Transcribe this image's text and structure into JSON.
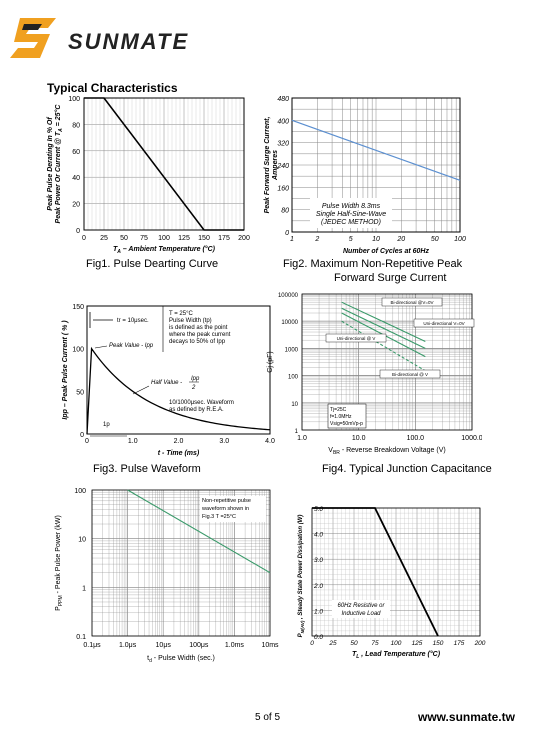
{
  "header": {
    "brand": "SUNMATE",
    "section_title": "Typical Characteristics"
  },
  "captions": {
    "fig1": "Fig1. Pulse Dearting Curve",
    "fig2_line1": "Fig2. Maximum Non-Repetitive Peak",
    "fig2_line2": "Forward Surge Current",
    "fig3": "Fig3. Pulse Waveform",
    "fig4": "Fig4. Typical Junction Capacitance"
  },
  "footer": {
    "page": "5 of  5",
    "url": "www.sunmate.tw"
  },
  "colors": {
    "brand_orange": "#f0a020",
    "curve_blue": "#5b8fd0",
    "curve_green": "#3a9a6a",
    "grid": "#888888"
  },
  "chart_data": [
    {
      "id": "fig1",
      "type": "line",
      "ylabel_line1": "Peak Pulse Derating In % Of",
      "ylabel_line2": "Peak Power Or Current @ T",
      "ylabel_sub": "A",
      "ylabel_tail": " = 25°C",
      "xlabel": "T",
      "xlabel_sub": "A",
      "xlabel_tail": " – Ambient Temperature (°C)",
      "x_ticks": [
        "0",
        "25",
        "50",
        "75",
        "100",
        "125",
        "150",
        "175",
        "200"
      ],
      "y_ticks": [
        "0",
        "20",
        "40",
        "60",
        "80",
        "100"
      ],
      "xlim": [
        0,
        200
      ],
      "ylim": [
        0,
        100
      ],
      "x": [
        0,
        25,
        150,
        200
      ],
      "y": [
        100,
        100,
        0,
        0
      ]
    },
    {
      "id": "fig2",
      "type": "line",
      "scale": "log-x",
      "ylabel_line1": "Peak Forward Surge Current,",
      "ylabel_line2": "Amperes",
      "xlabel": "Number of Cycles at 60Hz",
      "x_ticks": [
        "1",
        "2",
        "5",
        "10",
        "20",
        "50",
        "100"
      ],
      "y_ticks": [
        "0",
        "80",
        "160",
        "240",
        "320",
        "400",
        "480"
      ],
      "xlim": [
        1,
        100
      ],
      "ylim": [
        0,
        480
      ],
      "x": [
        1,
        100
      ],
      "y": [
        400,
        185
      ],
      "note_lines": [
        "Pulse Width 8.3ms",
        "Single Half-Sine-Wave",
        "(JEDEC METHOD)"
      ]
    },
    {
      "id": "fig3",
      "type": "line",
      "ylabel": "Ipp – Peak Pulse Current ( % )",
      "xlabel": "t - Time (ms)",
      "x_ticks": [
        "0",
        "1.0",
        "2.0",
        "3.0",
        "4.0"
      ],
      "y_ticks": [
        "0",
        "50",
        "100",
        "150"
      ],
      "xlim": [
        0,
        4
      ],
      "ylim": [
        0,
        150
      ],
      "annotations": {
        "tr": "tr = 10μsec.",
        "tj_lines": [
          "T  = 25°C",
          "Pulse Width (tp)",
          "is defined as the point",
          "where the peak current",
          "decays to 50% of Ipp"
        ],
        "peak": "Peak Value - Ipp",
        "half": "Half Value - ",
        "half_num": "Ipp",
        "half_den": "2",
        "waveform_lines": [
          "10/1000μsec. Waveform",
          "as defined by R.E.A."
        ],
        "tp": "1p"
      }
    },
    {
      "id": "fig4",
      "type": "line",
      "scale": "log-log",
      "ylabel": "Cj (pF)",
      "xlabel": "V  - Reverse Breakdown Voltage (V)",
      "xlabel_sub": "BR",
      "x_ticks": [
        "1.0",
        "10.0",
        "100.0",
        "1000.0"
      ],
      "y_ticks": [
        "100000",
        "10000",
        "1000",
        "100",
        "10",
        "1"
      ],
      "xlim": [
        1,
        1000
      ],
      "ylim": [
        1,
        100000
      ],
      "series": [
        {
          "name": "Bi-directional @V=0V",
          "x": [
            5,
            150
          ],
          "y": [
            50000,
            1800
          ]
        },
        {
          "name": "Uni-directional V=0V",
          "x": [
            5,
            150
          ],
          "y": [
            30000,
            1000
          ]
        },
        {
          "name": "Uni-directional @ V",
          "x": [
            5,
            150
          ],
          "y": [
            20000,
            500
          ]
        },
        {
          "name": "Bi-directional @ V",
          "x": [
            5,
            150
          ],
          "y": [
            10000,
            150
          ]
        }
      ],
      "conditions": [
        "Tj=25C",
        "f=1.0MHz",
        "Vsig=50mVp-p"
      ]
    },
    {
      "id": "fig5",
      "type": "line",
      "scale": "log-log",
      "ylabel": "P    - Peak Pulse Power (kW)",
      "ylabel_sub": "PPM",
      "xlabel": "t  - Pulse Width (sec.)",
      "xlabel_sub": "d",
      "x_ticks": [
        "0.1μs",
        "1.0μs",
        "10μs",
        "100μs",
        "1.0ms",
        "10ms"
      ],
      "y_ticks": [
        "100",
        "10",
        "1",
        "0.1"
      ],
      "note_lines": [
        "Non-repetitive pulse",
        "waveform shown in",
        "Fig.3 T =25°C"
      ],
      "x": [
        1,
        10000
      ],
      "y": [
        100,
        2
      ]
    },
    {
      "id": "fig6",
      "type": "line",
      "ylabel": "P        , Steady State Power Dissipation (W)",
      "ylabel_sub": "M(AV)",
      "xlabel": "T , Lead Temperature (°C)",
      "xlabel_sub": "L",
      "x_ticks": [
        "0",
        "25",
        "50",
        "75",
        "100",
        "125",
        "150",
        "175",
        "200"
      ],
      "y_ticks": [
        "0.0",
        "1.0",
        "2.0",
        "3.0",
        "4.0",
        "5.0"
      ],
      "xlim": [
        0,
        200
      ],
      "ylim": [
        0,
        5
      ],
      "x": [
        0,
        75,
        150
      ],
      "y": [
        5,
        5,
        0
      ],
      "note_lines": [
        "60Hz Resistive or",
        "Inductive Load"
      ]
    }
  ]
}
